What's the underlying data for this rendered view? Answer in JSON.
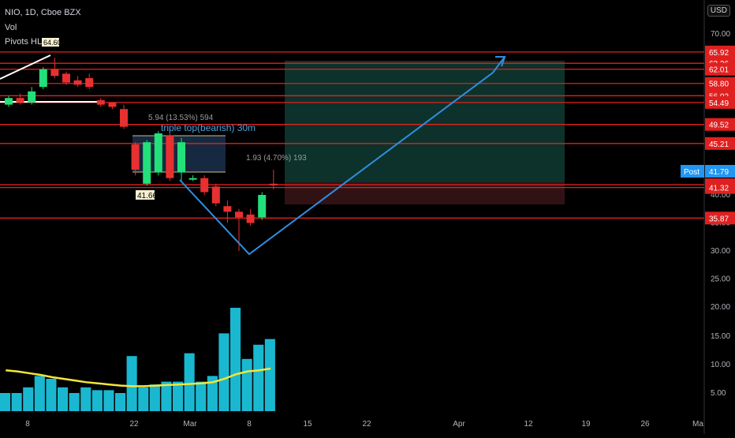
{
  "legend": {
    "symbol_line": "NIO, 1D, Cboe BZX",
    "vol_label": "Vol",
    "pivots_label": "Pivots HL",
    "pivot_value": "64.60"
  },
  "currency_button": "USD",
  "annotations": {
    "pattern_label": "triple top(bearish) 30m",
    "measure_1": "5.94 (13.53%) 594",
    "measure_2": "1.93 (4.70%) 193",
    "low_marker": "41.66"
  },
  "post_label": {
    "label": "Post",
    "value": "41.79"
  },
  "x_axis_labels": [
    "8",
    "22",
    "Mar",
    "8",
    "15",
    "22",
    "Apr",
    "12",
    "19",
    "26",
    "Ma"
  ],
  "price_axis_labels": [
    "70.00",
    "45.00",
    "40.00",
    "35.00",
    "30.00",
    "25.00",
    "20.00",
    "15.00",
    "10.00",
    "5.00"
  ],
  "level_tags": [
    "65.92",
    "63.36",
    "62.01",
    "58.80",
    "56.02",
    "54.49",
    "49.52",
    "45.21",
    "41.82",
    "41.32",
    "35.87"
  ],
  "colors": {
    "up": "#22e07a",
    "down": "#e83030",
    "level_line": "#e02020",
    "tag_bg": "#e02020",
    "volume": "#1ab8d0",
    "volume_ma": "#f5e63a",
    "projection": "#2f8ee0",
    "post_bg": "#2196f3"
  },
  "chart_data": {
    "type": "candlestick",
    "interval": "1D",
    "y_range": [
      0,
      70
    ],
    "candles": [
      {
        "o": 54.0,
        "h": 56.0,
        "c": 55.5,
        "l": 53.5
      },
      {
        "o": 55.5,
        "h": 56.5,
        "c": 54.5,
        "l": 54.0
      },
      {
        "o": 54.5,
        "h": 58.0,
        "c": 57.0,
        "l": 54.0
      },
      {
        "o": 58.0,
        "h": 62.5,
        "c": 62.0,
        "l": 57.5
      },
      {
        "o": 62.0,
        "h": 64.6,
        "c": 60.5,
        "l": 60.0
      },
      {
        "o": 61.0,
        "h": 61.5,
        "c": 59.0,
        "l": 58.5
      },
      {
        "o": 59.5,
        "h": 60.5,
        "c": 58.5,
        "l": 58.0
      },
      {
        "o": 60.0,
        "h": 61.0,
        "c": 58.0,
        "l": 57.5
      },
      {
        "o": 55.0,
        "h": 55.5,
        "c": 54.0,
        "l": 53.5
      },
      {
        "o": 54.5,
        "h": 54.5,
        "c": 53.5,
        "l": 53.0
      },
      {
        "o": 53.0,
        "h": 54.0,
        "c": 49.0,
        "l": 48.5
      },
      {
        "o": 45.0,
        "h": 45.5,
        "c": 44.5,
        "l": 43.5
      },
      {
        "o": 42.0,
        "h": 46.0,
        "c": 45.5,
        "l": 41.66
      },
      {
        "o": 44.0,
        "h": 48.0,
        "c": 47.5,
        "l": 43.5
      },
      {
        "o": 47.0,
        "h": 47.5,
        "c": 43.0,
        "l": 42.5
      },
      {
        "o": 44.0,
        "h": 46.5,
        "c": 45.5,
        "l": 42.5
      },
      {
        "o": 43.0,
        "h": 43.5,
        "c": 43.0,
        "l": 42.5
      },
      {
        "o": 43.0,
        "h": 43.5,
        "c": 40.5,
        "l": 40.0
      },
      {
        "o": 41.5,
        "h": 42.0,
        "c": 38.5,
        "l": 38.0
      },
      {
        "o": 38.0,
        "h": 39.0,
        "c": 37.0,
        "l": 35.0
      },
      {
        "o": 37.0,
        "h": 37.5,
        "c": 36.0,
        "l": 30.0
      },
      {
        "o": 36.5,
        "h": 37.5,
        "c": 35.0,
        "l": 34.5
      },
      {
        "o": 36.0,
        "h": 40.5,
        "c": 40.0,
        "l": 35.5
      },
      {
        "o": 42.0,
        "h": 44.5,
        "c": 41.79,
        "l": 41.0
      }
    ],
    "volume_series": [
      5,
      5,
      6,
      8,
      7.5,
      6,
      5,
      6,
      5.5,
      5.5,
      5,
      11.5,
      6,
      6.5,
      7,
      7,
      12,
      7,
      8,
      15.5,
      20,
      11,
      13.5,
      14.5
    ],
    "volume_ma": [
      9.0,
      8.8,
      8.5,
      8.2,
      7.8,
      7.5,
      7.2,
      6.9,
      6.7,
      6.5,
      6.3,
      6.2,
      6.2,
      6.3,
      6.4,
      6.5,
      6.6,
      6.7,
      6.9,
      7.5,
      8.3,
      8.8,
      9.0,
      9.3
    ]
  }
}
